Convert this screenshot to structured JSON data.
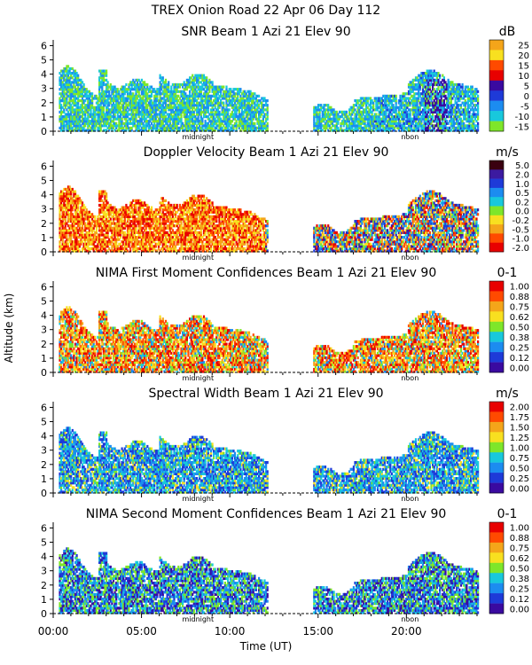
{
  "figure": {
    "title": "TREX Onion Road  22 Apr 06 Day 112",
    "ylabel": "Altitude (km)",
    "xlabel": "Time (UT)",
    "x_tick_labels": [
      "00:00",
      "05:00",
      "10:00",
      "15:00",
      "20:00"
    ],
    "midnight_label": "midnight",
    "noon_label": "noon"
  },
  "chart_data": [
    {
      "type": "heatmap",
      "title": "SNR Beam 1 Azi  21 Elev 90",
      "unit": "dB",
      "x_unit": "hours UT",
      "xlim": [
        0,
        24
      ],
      "y_unit": "km",
      "ylim": [
        0,
        6.4
      ],
      "y_ticks": [
        "0",
        "1",
        "2",
        "3",
        "4",
        "5",
        "6"
      ],
      "colorbar_labels": [
        "25",
        "20",
        "15",
        "10",
        "5",
        "0",
        "-5",
        "-10",
        "-15"
      ],
      "colors": [
        "#f4a51a",
        "#f8e020",
        "#ff4a00",
        "#e80000",
        "#3a0aa0",
        "#1e3ad8",
        "#1c8cf0",
        "#18c8dc",
        "#7ee62a"
      ]
    },
    {
      "type": "heatmap",
      "title": "Doppler Velocity Beam 1 Azi  21 Elev 90",
      "unit": "m/s",
      "x_unit": "hours UT",
      "xlim": [
        0,
        24
      ],
      "y_unit": "km",
      "ylim": [
        0,
        6.4
      ],
      "y_ticks": [
        "0",
        "1",
        "2",
        "3",
        "4",
        "5",
        "6"
      ],
      "colorbar_labels": [
        "5.0",
        "2.0",
        "1.0",
        "0.5",
        "0.2",
        "0.0",
        "-0.2",
        "-0.5",
        "-1.0",
        "-2.0"
      ],
      "colors": [
        "#3a0010",
        "#3c1aa0",
        "#1e3ad8",
        "#1c8cf0",
        "#18c8dc",
        "#7ee62a",
        "#f8e020",
        "#f4a51a",
        "#ff4a00",
        "#e80000"
      ]
    },
    {
      "type": "heatmap",
      "title": "NIMA First Moment Confidences Beam 1 Azi  21 Elev 90",
      "unit": "0-1",
      "x_unit": "hours UT",
      "xlim": [
        0,
        24
      ],
      "y_unit": "km",
      "ylim": [
        0,
        6.4
      ],
      "y_ticks": [
        "0",
        "1",
        "2",
        "3",
        "4",
        "5",
        "6"
      ],
      "colorbar_labels": [
        "1.00",
        "0.88",
        "0.75",
        "0.62",
        "0.50",
        "0.38",
        "0.25",
        "0.12",
        "0.00"
      ],
      "colors": [
        "#e80000",
        "#ff4a00",
        "#f4a51a",
        "#f8e020",
        "#7ee62a",
        "#18c8dc",
        "#1c8cf0",
        "#1e3ad8",
        "#3a0aa0"
      ]
    },
    {
      "type": "heatmap",
      "title": "Spectral Width Beam 1 Azi  21 Elev 90",
      "unit": "m/s",
      "x_unit": "hours UT",
      "xlim": [
        0,
        24
      ],
      "y_unit": "km",
      "ylim": [
        0,
        6.4
      ],
      "y_ticks": [
        "0",
        "1",
        "2",
        "3",
        "4",
        "5",
        "6"
      ],
      "colorbar_labels": [
        "2.00",
        "1.75",
        "1.50",
        "1.25",
        "1.00",
        "0.75",
        "0.50",
        "0.25",
        "0.00"
      ],
      "colors": [
        "#e80000",
        "#ff4a00",
        "#f4a51a",
        "#f8e020",
        "#7ee62a",
        "#18c8dc",
        "#1c8cf0",
        "#1e3ad8",
        "#3a0aa0"
      ]
    },
    {
      "type": "heatmap",
      "title": "NIMA Second Moment Confidences Beam 1 Azi  21 Elev 90",
      "unit": "0-1",
      "x_unit": "hours UT",
      "xlim": [
        0,
        24
      ],
      "y_unit": "km",
      "ylim": [
        0,
        6.4
      ],
      "y_ticks": [
        "0",
        "1",
        "2",
        "3",
        "4",
        "5",
        "6"
      ],
      "colorbar_labels": [
        "1.00",
        "0.88",
        "0.75",
        "0.62",
        "0.50",
        "0.38",
        "0.25",
        "0.12",
        "0.00"
      ],
      "colors": [
        "#e80000",
        "#ff4a00",
        "#f4a51a",
        "#f8e020",
        "#7ee62a",
        "#18c8dc",
        "#1c8cf0",
        "#1e3ad8",
        "#3a0aa0"
      ]
    }
  ]
}
